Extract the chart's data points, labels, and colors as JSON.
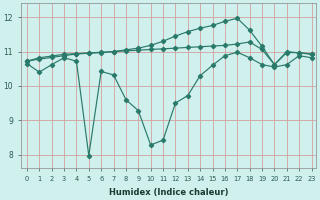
{
  "xlabel": "Humidex (Indice chaleur)",
  "background_color": "#cff0ec",
  "grid_color": "#d4a0a0",
  "line_color": "#2a7a6a",
  "xlim_min": -0.5,
  "xlim_max": 23.4,
  "ylim_min": 7.6,
  "ylim_max": 12.4,
  "yticks": [
    8,
    9,
    10,
    11,
    12
  ],
  "xticks": [
    0,
    1,
    2,
    3,
    4,
    5,
    6,
    7,
    8,
    9,
    10,
    11,
    12,
    13,
    14,
    15,
    16,
    17,
    18,
    19,
    20,
    21,
    22,
    23
  ],
  "line1_x": [
    0,
    1,
    2,
    3,
    4,
    5,
    6,
    7,
    8,
    9,
    10,
    11,
    12,
    13,
    14,
    15,
    16,
    17,
    18,
    19,
    20,
    21,
    22,
    23
  ],
  "line1_y": [
    10.65,
    10.4,
    10.62,
    10.82,
    10.72,
    7.97,
    10.42,
    10.32,
    9.6,
    9.28,
    8.28,
    8.42,
    9.5,
    9.72,
    10.3,
    10.6,
    10.88,
    10.98,
    10.82,
    10.62,
    10.55,
    10.62,
    10.88,
    10.82
  ],
  "line2_x": [
    0,
    1,
    2,
    3,
    4,
    5,
    6,
    7,
    8,
    9,
    10,
    11,
    12,
    13,
    14,
    15,
    16,
    17,
    18,
    19,
    20,
    21,
    22,
    23
  ],
  "line2_y": [
    10.72,
    10.82,
    10.87,
    10.92,
    10.94,
    10.96,
    10.98,
    11.0,
    11.02,
    11.04,
    11.06,
    11.08,
    11.1,
    11.12,
    11.14,
    11.16,
    11.18,
    11.22,
    11.28,
    11.06,
    10.62,
    11.0,
    10.96,
    10.92
  ],
  "line3_x": [
    0,
    1,
    2,
    3,
    4,
    5,
    6,
    7,
    8,
    9,
    10,
    11,
    12,
    13,
    14,
    15,
    16,
    17,
    18,
    19,
    20,
    21,
    22,
    23
  ],
  "line3_y": [
    10.72,
    10.78,
    10.83,
    10.88,
    10.93,
    10.95,
    10.97,
    11.0,
    11.05,
    11.1,
    11.18,
    11.3,
    11.45,
    11.58,
    11.68,
    11.76,
    11.88,
    11.97,
    11.62,
    11.15,
    10.62,
    10.97,
    10.97,
    10.93
  ]
}
